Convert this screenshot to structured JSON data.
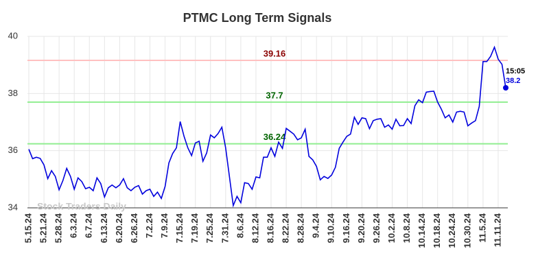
{
  "chart_data": {
    "type": "line",
    "title": "PTMC Long Term Signals",
    "categories": [
      "5.15.24",
      null,
      null,
      null,
      "5.21.24",
      null,
      null,
      null,
      "5.28.24",
      null,
      null,
      null,
      "6.3.24",
      null,
      null,
      null,
      "6.7.24",
      null,
      null,
      null,
      "6.13.24",
      null,
      null,
      null,
      "6.20.24",
      null,
      null,
      null,
      "6.26.24",
      null,
      null,
      null,
      "7.2.24",
      null,
      null,
      null,
      "7.9.24",
      null,
      null,
      null,
      "7.15.24",
      null,
      null,
      null,
      "7.19.24",
      null,
      null,
      null,
      "7.25.24",
      null,
      null,
      null,
      "7.31.24",
      null,
      null,
      null,
      "8.6.24",
      null,
      null,
      null,
      "8.12.24",
      null,
      null,
      null,
      "8.16.24",
      null,
      null,
      null,
      "8.22.24",
      null,
      null,
      null,
      "8.28.24",
      null,
      null,
      null,
      "9.4.24",
      null,
      null,
      null,
      "9.10.24",
      null,
      null,
      null,
      "9.16.24",
      null,
      null,
      null,
      "9.20.24",
      null,
      null,
      null,
      "9.26.24",
      null,
      null,
      null,
      "10.2.24",
      null,
      null,
      null,
      "10.8.24",
      null,
      null,
      null,
      "10.14.24",
      null,
      null,
      null,
      "10.18.24",
      null,
      null,
      null,
      "10.24.24",
      null,
      null,
      null,
      "10.30.24",
      null,
      null,
      null,
      "11.5.24",
      null,
      null,
      null,
      "11.11.24",
      null,
      null
    ],
    "values": [
      36.05,
      35.72,
      35.77,
      35.73,
      35.5,
      35.02,
      35.3,
      35.1,
      34.63,
      34.95,
      35.38,
      35.1,
      34.65,
      35.05,
      34.92,
      34.67,
      34.72,
      34.6,
      35.05,
      34.85,
      34.38,
      34.7,
      34.8,
      34.7,
      34.8,
      35.02,
      34.7,
      34.6,
      34.72,
      34.78,
      34.48,
      34.6,
      34.65,
      34.4,
      34.55,
      34.33,
      34.75,
      35.57,
      35.9,
      36.1,
      37.02,
      36.5,
      36.1,
      35.83,
      36.27,
      36.33,
      35.63,
      35.92,
      36.55,
      36.45,
      36.6,
      36.82,
      36.1,
      35.1,
      34.08,
      34.4,
      34.18,
      34.88,
      34.85,
      34.65,
      35.08,
      35.05,
      35.77,
      35.77,
      36.1,
      35.8,
      36.3,
      36.08,
      36.78,
      36.68,
      36.58,
      36.38,
      36.45,
      36.75,
      35.8,
      35.68,
      35.45,
      34.98,
      35.1,
      35.03,
      35.15,
      35.42,
      36.08,
      36.3,
      36.5,
      36.58,
      37.17,
      36.92,
      37.15,
      37.12,
      36.77,
      37.05,
      37.1,
      37.12,
      36.82,
      36.9,
      36.75,
      37.1,
      36.87,
      36.88,
      37.12,
      36.95,
      37.57,
      37.78,
      37.68,
      38.05,
      38.07,
      38.08,
      37.7,
      37.45,
      37.15,
      37.25,
      37.0,
      37.35,
      37.38,
      37.35,
      36.87,
      36.97,
      37.05,
      37.55,
      39.12,
      39.12,
      39.3,
      39.62,
      39.2,
      39.02,
      38.2
    ],
    "color": "#0000dd",
    "ylim": [
      34,
      40
    ],
    "yticks": [
      34,
      36,
      38,
      40
    ],
    "grid": true,
    "hlines": [
      {
        "value": 39.16,
        "color": "#ffc0c0",
        "label_color": "#8b0000"
      },
      {
        "value": 37.7,
        "color": "#90ee90",
        "label_color": "#006400"
      },
      {
        "value": 36.24,
        "color": "#90ee90",
        "label_color": "#006400"
      }
    ],
    "last_label": "15:05",
    "watermark": "Stock Traders Daily"
  }
}
